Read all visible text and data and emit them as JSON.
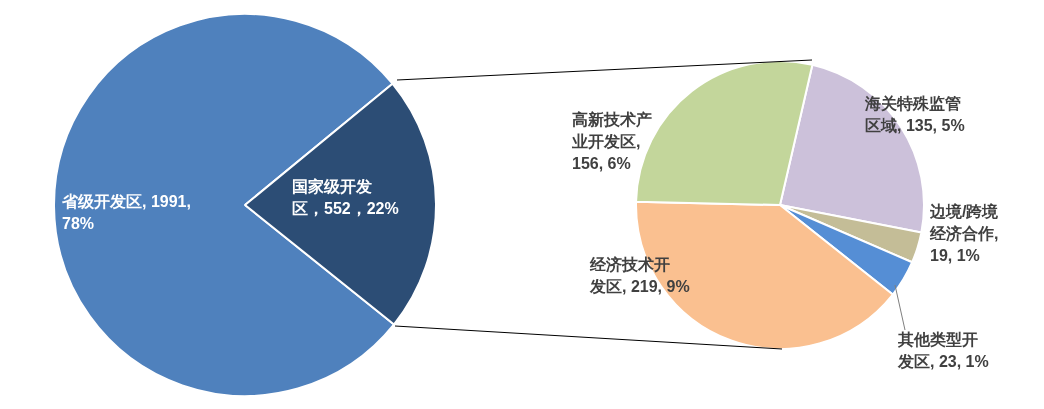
{
  "chart_data": [
    {
      "type": "pie",
      "categories": [
        "省级开发区",
        "国家级开发区"
      ],
      "values": [
        1991,
        552
      ],
      "colors": [
        "#4f81bd",
        "#2c4d75"
      ],
      "value_labels": [
        ", 1991, 78%",
        "，552，22%"
      ]
    },
    {
      "type": "pie",
      "categories": [
        "海关特殊监管区域",
        "边境/跨境经济合作",
        "其他类型开发区",
        "经济技术开发区",
        "高新技术产业开发区"
      ],
      "values": [
        135,
        19,
        23,
        219,
        156
      ],
      "colors": [
        "#ccc1da",
        "#c4bd97",
        "#558ed5",
        "#fac090",
        "#c3d69b"
      ],
      "value_labels": [
        ", 135, 5%",
        ", 19, 1%",
        ", 23, 1%",
        ", 219, 9%",
        ", 156, 6%"
      ]
    }
  ]
}
